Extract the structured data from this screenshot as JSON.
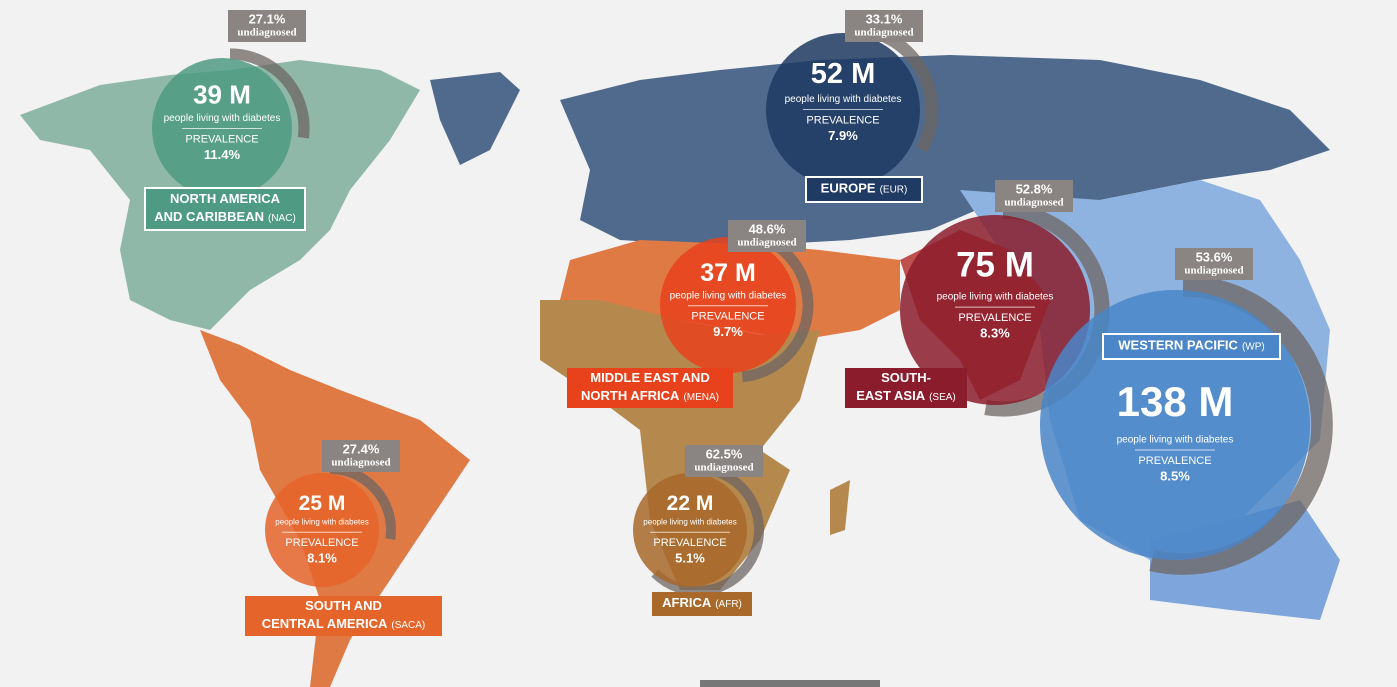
{
  "labels": {
    "people": "people living with diabetes",
    "prevalence": "PREVALENCE",
    "undiagnosed": "undiagnosed"
  },
  "regions": [
    {
      "name": [
        "NORTH AMERICA",
        "AND CARIBBEAN"
      ],
      "code": "(NAC)",
      "people": "39 M",
      "prevalence": "11.4%",
      "undiagnosed": {
        "value": 27.1,
        "label": "27.1%"
      },
      "color": "#4f9a82"
    },
    {
      "name": [
        "EUROPE"
      ],
      "code": "(EUR)",
      "people": "52 M",
      "prevalence": "7.9%",
      "undiagnosed": {
        "value": 33.1,
        "label": "33.1%"
      },
      "color": "#1f3a63"
    },
    {
      "name": [
        "MIDDLE EAST AND",
        "NORTH AFRICA"
      ],
      "code": "(MENA)",
      "people": "37 M",
      "prevalence": "9.7%",
      "undiagnosed": {
        "value": 48.6,
        "label": "48.6%"
      },
      "color": "#e8421c"
    },
    {
      "name": [
        "SOUTH-",
        "EAST ASIA"
      ],
      "code": "(SEA)",
      "people": "75 M",
      "prevalence": "8.3%",
      "undiagnosed": {
        "value": 52.8,
        "label": "52.8%"
      },
      "color": "#8b1c2c"
    },
    {
      "name": [
        "WESTERN PACIFIC"
      ],
      "code": "(WP)",
      "people": "138 M",
      "prevalence": "8.5%",
      "undiagnosed": {
        "value": 53.6,
        "label": "53.6%"
      },
      "color": "#4a86c8"
    },
    {
      "name": [
        "SOUTH AND",
        "CENTRAL AMERICA"
      ],
      "code": "(SACA)",
      "people": "25 M",
      "prevalence": "8.1%",
      "undiagnosed": {
        "value": 27.4,
        "label": "27.4%"
      },
      "color": "#e5642a"
    },
    {
      "name": [
        "AFRICA"
      ],
      "code": "(AFR)",
      "people": "22 M",
      "prevalence": "5.1%",
      "undiagnosed": {
        "value": 62.5,
        "label": "62.5%"
      },
      "color": "#a8692a"
    }
  ]
}
